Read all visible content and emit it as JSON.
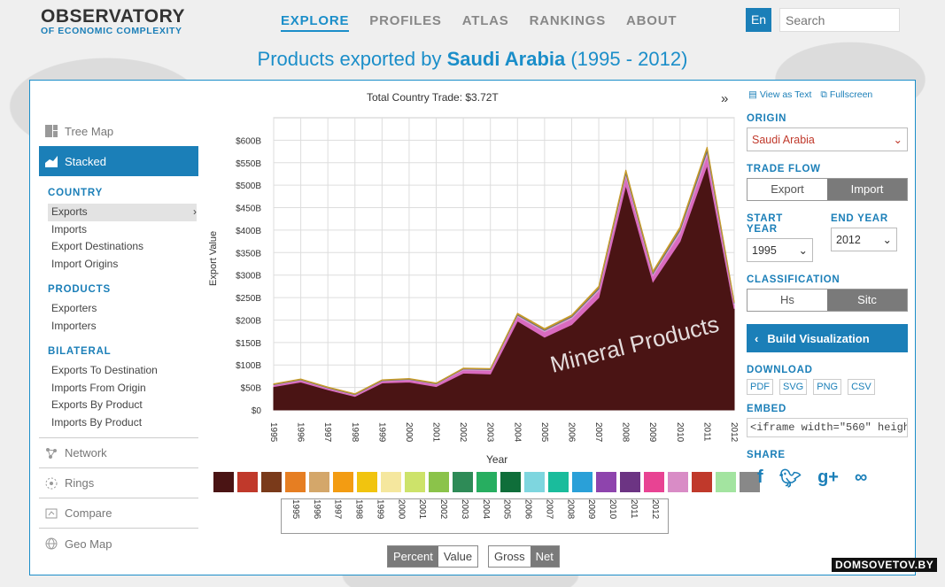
{
  "header": {
    "logo_line1": "OBSERVATORY",
    "logo_line2": "OF ECONOMIC COMPLEXITY",
    "nav": [
      "EXPLORE",
      "PROFILES",
      "ATLAS",
      "RANKINGS",
      "ABOUT"
    ],
    "lang": "En",
    "search_placeholder": "Search"
  },
  "page_title": {
    "prefix": "Products exported by ",
    "country": "Saudi Arabia",
    "suffix": " (1995 - 2012)"
  },
  "sidebar": {
    "tree_map": "Tree Map",
    "stacked": "Stacked",
    "country_label": "COUNTRY",
    "country_links": [
      "Exports",
      "Imports",
      "Export Destinations",
      "Import Origins"
    ],
    "products_label": "PRODUCTS",
    "products_links": [
      "Exporters",
      "Importers"
    ],
    "bilateral_label": "BILATERAL",
    "bilateral_links": [
      "Exports To Destination",
      "Imports From Origin",
      "Exports By Product",
      "Imports By Product"
    ],
    "network": "Network",
    "rings": "Rings",
    "compare": "Compare",
    "geo_map": "Geo Map"
  },
  "controls": {
    "view_as_text": "View as Text",
    "fullscreen": "Fullscreen",
    "origin_label": "ORIGIN",
    "origin_value": "Saudi Arabia",
    "trade_flow_label": "TRADE FLOW",
    "trade_flow_options": [
      "Export",
      "Import"
    ],
    "start_year_label": "START YEAR",
    "start_year": "1995",
    "end_year_label": "END YEAR",
    "end_year": "2012",
    "classification_label": "CLASSIFICATION",
    "classification_options": [
      "Hs",
      "Sitc"
    ],
    "build": "Build Visualization",
    "download_label": "DOWNLOAD",
    "download_options": [
      "PDF",
      "SVG",
      "PNG",
      "CSV"
    ],
    "embed_label": "EMBED",
    "embed_code": "<iframe width=\"560\" heigh",
    "share_label": "SHARE"
  },
  "chart_data": {
    "type": "area",
    "title": "Total Country Trade: $3.72T",
    "xlabel": "Year",
    "ylabel": "Export Value",
    "x": [
      1995,
      1996,
      1997,
      1998,
      1999,
      2000,
      2001,
      2002,
      2003,
      2004,
      2005,
      2006,
      2007,
      2008,
      2009,
      2010,
      2011,
      2012
    ],
    "yticks": [
      "$0",
      "$50B",
      "$100B",
      "$150B",
      "$200B",
      "$250B",
      "$300B",
      "$350B",
      "$400B",
      "$450B",
      "$500B",
      "$550B",
      "$600B"
    ],
    "ylim": [
      0,
      650
    ],
    "annotation": "Mineral Products",
    "series": [
      {
        "name": "Mineral Products",
        "color": "#4a1414",
        "values": [
          52,
          62,
          45,
          30,
          60,
          62,
          52,
          82,
          80,
          198,
          162,
          190,
          250,
          500,
          285,
          375,
          545,
          225
        ]
      },
      {
        "color": "#d96bbf",
        "values": [
          3,
          4,
          3,
          3,
          4,
          5,
          5,
          7,
          8,
          10,
          12,
          13,
          15,
          20,
          14,
          18,
          22,
          9
        ]
      },
      {
        "color": "#dba0cf",
        "values": [
          1,
          1,
          1,
          1,
          1,
          1,
          1,
          2,
          2,
          3,
          3,
          4,
          4,
          6,
          4,
          6,
          8,
          3
        ]
      },
      {
        "color": "#5a6e7a",
        "values": [
          1,
          1,
          1,
          1,
          1,
          1,
          1,
          1,
          1,
          2,
          2,
          2,
          3,
          4,
          3,
          4,
          6,
          2
        ]
      },
      {
        "color": "#c79a2a",
        "values": [
          1,
          1,
          1,
          1,
          1,
          1,
          1,
          1,
          1,
          2,
          2,
          2,
          3,
          4,
          3,
          4,
          4,
          2
        ]
      }
    ]
  },
  "product_icons": [
    "#4a1414",
    "#c0392b",
    "#7a3a1a",
    "#e67e22",
    "#d4a76a",
    "#f39c12",
    "#f1c40f",
    "#f5e79e",
    "#cde36a",
    "#8bc34a",
    "#2e8b57",
    "#27ae60",
    "#0f6e3a",
    "#7ed6df",
    "#1abc9c",
    "#2aa0d8",
    "#8e44ad",
    "#6c3483",
    "#e84393",
    "#d98cc6",
    "#c0392b",
    "#a3e4a0",
    "#888888"
  ],
  "timeline_years": [
    "1995",
    "1996",
    "1997",
    "1998",
    "1999",
    "2000",
    "2001",
    "2002",
    "2003",
    "2004",
    "2005",
    "2006",
    "2007",
    "2008",
    "2009",
    "2010",
    "2011",
    "2012"
  ],
  "toggles": {
    "percent": "Percent",
    "value": "Value",
    "gross": "Gross",
    "net": "Net"
  },
  "watermark": "DOMSOVETOV.BY"
}
